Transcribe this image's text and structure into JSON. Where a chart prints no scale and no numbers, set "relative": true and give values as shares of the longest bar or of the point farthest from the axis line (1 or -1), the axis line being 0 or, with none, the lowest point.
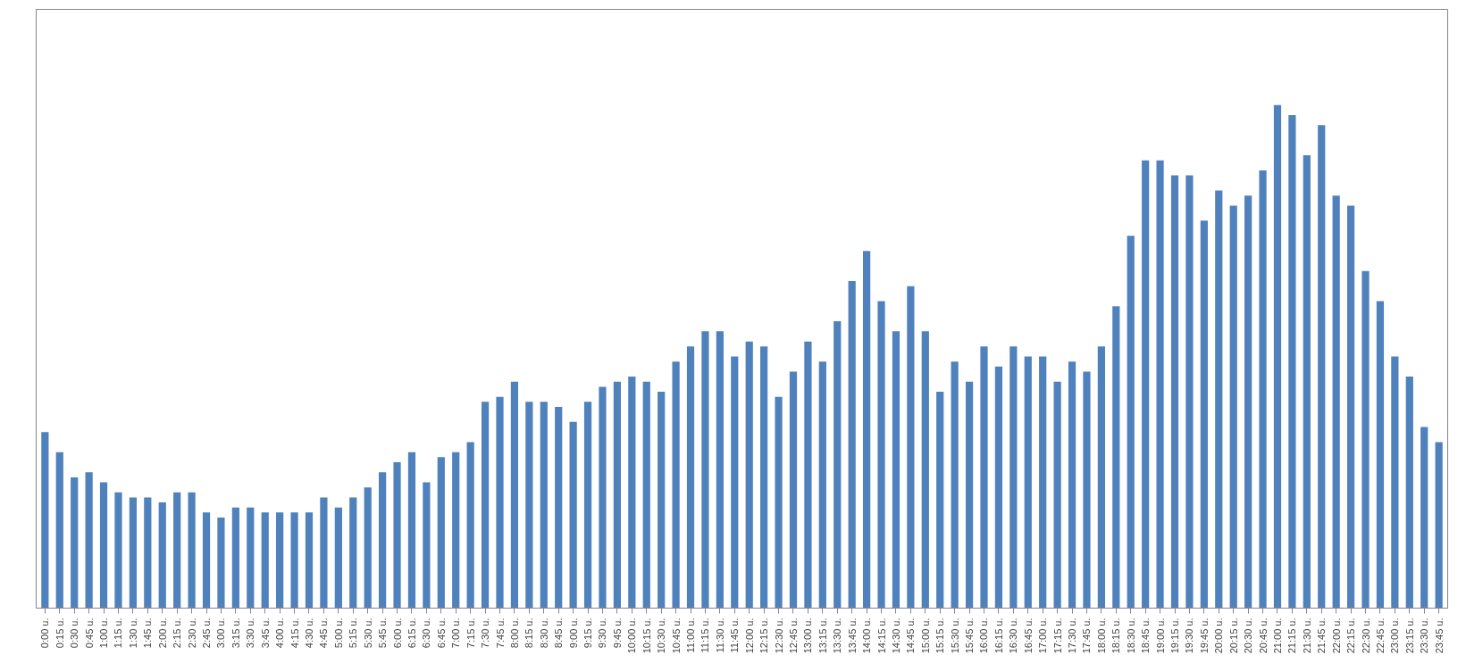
{
  "chart_data": {
    "type": "bar",
    "relative": true,
    "color": "#4f81bd",
    "categories": [
      "0:00 u.",
      "0:15 u.",
      "0:30 u.",
      "0:45 u.",
      "1:00 u.",
      "1:15 u.",
      "1:30 u.",
      "1:45 u.",
      "2:00 u.",
      "2:15 u.",
      "2:30 u.",
      "2:45 u.",
      "3:00 u.",
      "3:15 u.",
      "3:30 u.",
      "3:45 u.",
      "4:00 u.",
      "4:15 u.",
      "4:30 u.",
      "4:45 u.",
      "5:00 u.",
      "5:15 u.",
      "5:30 u.",
      "5:45 u.",
      "6:00 u.",
      "6:15 u.",
      "6:30 u.",
      "6:45 u.",
      "7:00 u.",
      "7:15 u.",
      "7:30 u.",
      "7:45 u.",
      "8:00 u.",
      "8:15 u.",
      "8:30 u.",
      "8:45 u.",
      "9:00 u.",
      "9:15 u.",
      "9:30 u.",
      "9:45 u.",
      "10:00 u.",
      "10:15 u.",
      "10:30 u.",
      "10:45 u.",
      "11:00 u.",
      "11:15 u.",
      "11:30 u.",
      "11:45 u.",
      "12:00 u.",
      "12:15 u.",
      "12:30 u.",
      "12:45 u.",
      "13:00 u.",
      "13:15 u.",
      "13:30 u.",
      "13:45 u.",
      "14:00 u.",
      "14:15 u.",
      "14:30 u.",
      "14:45 u.",
      "15:00 u.",
      "15:15 u.",
      "15:30 u.",
      "15:45 u.",
      "16:00 u.",
      "16:15 u.",
      "16:30 u.",
      "16:45 u.",
      "17:00 u.",
      "17:15 u.",
      "17:30 u.",
      "17:45 u.",
      "18:00 u.",
      "18:15 u.",
      "18:30 u.",
      "18:45 u.",
      "19:00 u.",
      "19:15 u.",
      "19:30 u.",
      "19:45 u.",
      "20:00 u.",
      "20:15 u.",
      "20:30 u.",
      "20:45 u.",
      "21:00 u.",
      "21:15 u.",
      "21:30 u.",
      "21:45 u.",
      "22:00 u.",
      "22:15 u.",
      "22:30 u.",
      "22:45 u.",
      "23:00 u.",
      "23:15 u.",
      "23:30 u.",
      "23:45 u."
    ],
    "values": [
      0.35,
      0.31,
      0.26,
      0.27,
      0.25,
      0.23,
      0.22,
      0.22,
      0.21,
      0.23,
      0.23,
      0.19,
      0.18,
      0.2,
      0.2,
      0.19,
      0.19,
      0.19,
      0.19,
      0.22,
      0.2,
      0.22,
      0.24,
      0.27,
      0.29,
      0.31,
      0.25,
      0.3,
      0.31,
      0.33,
      0.41,
      0.42,
      0.45,
      0.41,
      0.41,
      0.4,
      0.37,
      0.41,
      0.44,
      0.45,
      0.46,
      0.45,
      0.43,
      0.49,
      0.52,
      0.55,
      0.55,
      0.5,
      0.53,
      0.52,
      0.42,
      0.47,
      0.53,
      0.49,
      0.57,
      0.65,
      0.71,
      0.61,
      0.55,
      0.64,
      0.55,
      0.43,
      0.49,
      0.45,
      0.52,
      0.48,
      0.52,
      0.5,
      0.5,
      0.45,
      0.49,
      0.47,
      0.52,
      0.6,
      0.74,
      0.89,
      0.89,
      0.86,
      0.86,
      0.77,
      0.83,
      0.8,
      0.82,
      0.87,
      1,
      0.98,
      0.9,
      0.96,
      0.82,
      0.8,
      0.67,
      0.61,
      0.5,
      0.46,
      0.36,
      0.33
    ]
  }
}
